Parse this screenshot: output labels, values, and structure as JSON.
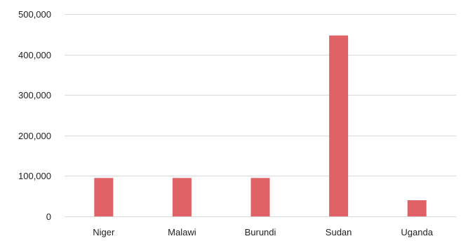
{
  "chart_data": {
    "type": "bar",
    "title": "",
    "xlabel": "",
    "ylabel": "",
    "categories": [
      "Niger",
      "Malawi",
      "Burundi",
      "Sudan",
      "Uganda"
    ],
    "values": [
      95000,
      95000,
      95000,
      447000,
      40000
    ],
    "ylim": [
      0,
      500000
    ],
    "yticks": [
      0,
      100000,
      200000,
      300000,
      400000,
      500000
    ],
    "ytick_labels": [
      "0",
      "100,000",
      "200,000",
      "300,000",
      "400,000",
      "500,000"
    ],
    "grid": true,
    "legend": "none",
    "colors": {
      "bar": "#e06166",
      "grid": "#d9d9d9",
      "text": "#222222"
    }
  }
}
